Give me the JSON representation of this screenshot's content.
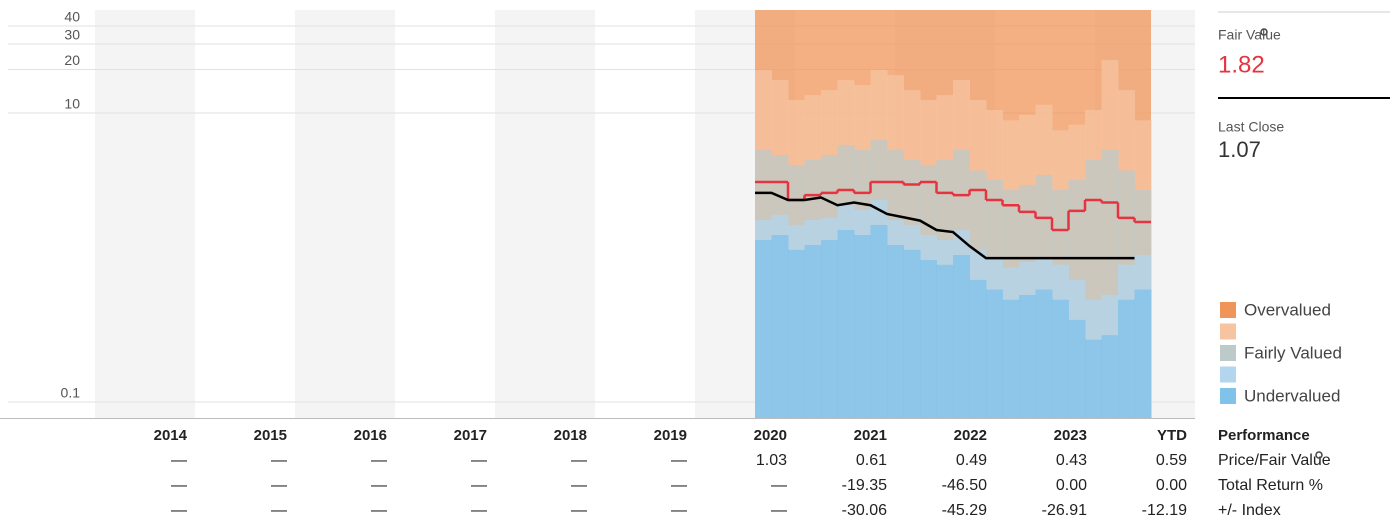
{
  "chart_data": {
    "type": "valuation",
    "categories": [
      "2014",
      "2015",
      "2016",
      "2017",
      "2018",
      "2019",
      "2020",
      "2021",
      "2022",
      "2023",
      "YTD"
    ],
    "xlim": [
      0,
      11
    ],
    "ylim": [
      0.0775,
      51.6
    ],
    "yticks": [
      0.1,
      10,
      20,
      30,
      40
    ],
    "log_scale": true,
    "grid": true,
    "x": [
      6.6,
      6.765,
      6.93,
      7.095,
      7.26,
      7.425,
      7.59,
      7.755,
      7.92,
      8.085,
      8.25,
      8.415,
      8.58,
      8.745,
      8.91,
      9.075,
      9.24,
      9.405,
      9.57,
      9.735,
      9.9,
      10.065,
      10.23,
      10.395
    ],
    "bands": [
      {
        "name": "Overvalued",
        "color": "#f0955a"
      },
      {
        "name": null,
        "color": "#f6c4a0",
        "values": [
          19.8,
          16.9,
          12.3,
          13.3,
          14.4,
          16.9,
          15.6,
          19.8,
          18.3,
          14.4,
          12.3,
          13.3,
          16.9,
          12.3,
          10.5,
          8.9,
          9.7,
          11.4,
          7.6,
          8.3,
          10.5,
          23.3,
          14.4,
          8.9
        ]
      },
      {
        "name": "Fairly Valued",
        "color": "#bccaca",
        "values": [
          5.55,
          5.1,
          4.37,
          4.73,
          5.1,
          6.0,
          5.55,
          6.5,
          5.55,
          4.73,
          4.37,
          4.73,
          5.55,
          4.0,
          3.44,
          2.93,
          3.17,
          3.73,
          2.93,
          3.44,
          4.73,
          5.55,
          4.0,
          2.93
        ]
      },
      {
        "name": null,
        "color": "#b3d6ee",
        "values": [
          1.82,
          1.97,
          1.68,
          1.82,
          1.88,
          2.3,
          2.13,
          2.5,
          1.82,
          1.68,
          1.43,
          1.32,
          1.55,
          1.13,
          0.96,
          0.85,
          0.93,
          0.99,
          0.89,
          0.7,
          0.51,
          0.55,
          0.89,
          1.04
        ]
      },
      {
        "name": "Undervalued",
        "color": "#7fc2ea",
        "values": [
          1.32,
          1.43,
          1.13,
          1.22,
          1.32,
          1.55,
          1.43,
          1.68,
          1.22,
          1.13,
          0.96,
          0.89,
          1.04,
          0.7,
          0.6,
          0.51,
          0.55,
          0.6,
          0.51,
          0.37,
          0.27,
          0.29,
          0.51,
          0.6
        ]
      }
    ],
    "lines": [
      {
        "name": "Fair Value",
        "color": "#e5333f",
        "step": true,
        "values": [
          3.33,
          3.33,
          2.5,
          2.7,
          2.8,
          2.93,
          2.8,
          3.33,
          3.33,
          3.2,
          3.33,
          2.8,
          2.7,
          2.93,
          2.5,
          2.3,
          2.07,
          1.88,
          1.55,
          2.1,
          2.5,
          2.4,
          1.88,
          1.76
        ],
        "current": 1.82
      },
      {
        "name": "Last Close",
        "color": "#000000",
        "step": false,
        "values": [
          2.8,
          2.8,
          2.5,
          2.5,
          2.6,
          2.3,
          2.4,
          2.3,
          2.0,
          1.9,
          1.8,
          1.55,
          1.5,
          1.2,
          0.99,
          0.99,
          0.99,
          0.99,
          0.99,
          0.99,
          0.99,
          0.99,
          0.99,
          0.99
        ],
        "current": 1.07
      }
    ],
    "table": {
      "header": "Performance",
      "rows": [
        {
          "label": "Price/Fair Value",
          "cells": [
            "—",
            "—",
            "—",
            "—",
            "—",
            "—",
            "1.03",
            "0.61",
            "0.49",
            "0.43",
            "0.59"
          ]
        },
        {
          "label": "Total Return %",
          "cells": [
            "—",
            "—",
            "—",
            "—",
            "—",
            "—",
            "—",
            "-19.35",
            "-46.50",
            "0.00",
            "0.00"
          ]
        },
        {
          "label": "+/- Index",
          "cells": [
            "—",
            "—",
            "—",
            "—",
            "—",
            "—",
            "—",
            "-30.06",
            "-45.29",
            "-26.91",
            "-12.19"
          ]
        }
      ]
    }
  }
}
